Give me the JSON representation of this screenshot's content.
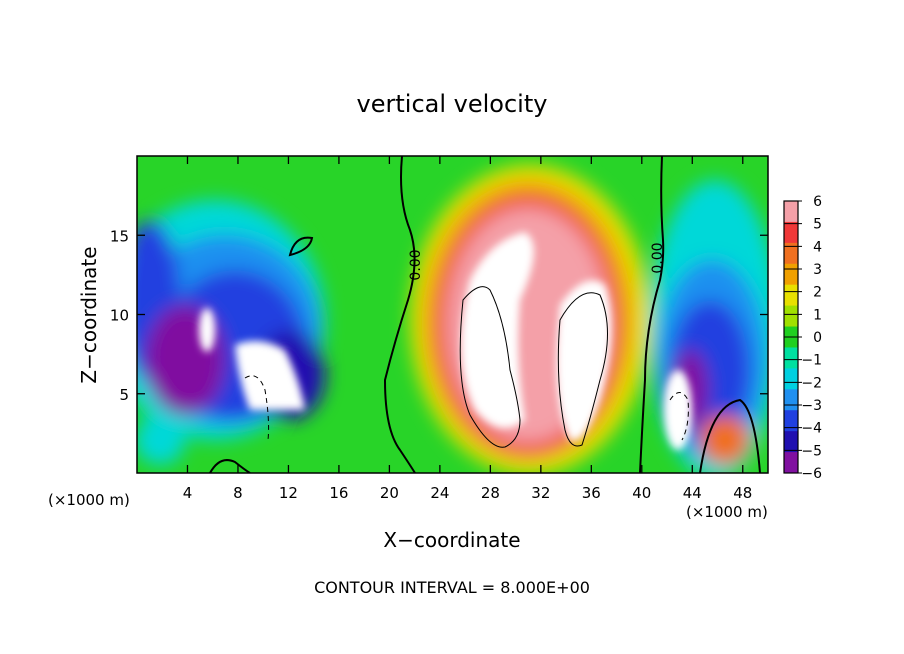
{
  "chart_data": {
    "type": "heatmap",
    "title": "vertical velocity",
    "xlabel": "X−coordinate",
    "ylabel": "Z−coordinate",
    "x_unit": "(×1000 m)",
    "y_unit": "(×1000 m)",
    "xlim": [
      0,
      50
    ],
    "ylim": [
      0,
      20
    ],
    "x_ticks": [
      "4",
      "8",
      "12",
      "16",
      "20",
      "24",
      "28",
      "32",
      "36",
      "40",
      "44",
      "48"
    ],
    "y_ticks": [
      "5",
      "10",
      "15"
    ],
    "colorbar": {
      "range": [
        -6,
        6
      ],
      "tick_labels": [
        "6",
        "5",
        "4",
        "3",
        "2",
        "1",
        "0",
        "−1",
        "−2",
        "−3",
        "−4",
        "−5",
        "−6"
      ],
      "colors": [
        "#f4a0a8",
        "#f03838",
        "#f07020",
        "#f0a000",
        "#e8e000",
        "#a0e000",
        "#20d020",
        "#00e0a0",
        "#00d0e0",
        "#2090f0",
        "#2040e0",
        "#2010b0",
        "#8010a0"
      ]
    },
    "contour_labels": [
      "0.00",
      "0.00"
    ],
    "footer": "CONTOUR INTERVAL = 8.000E+00"
  }
}
